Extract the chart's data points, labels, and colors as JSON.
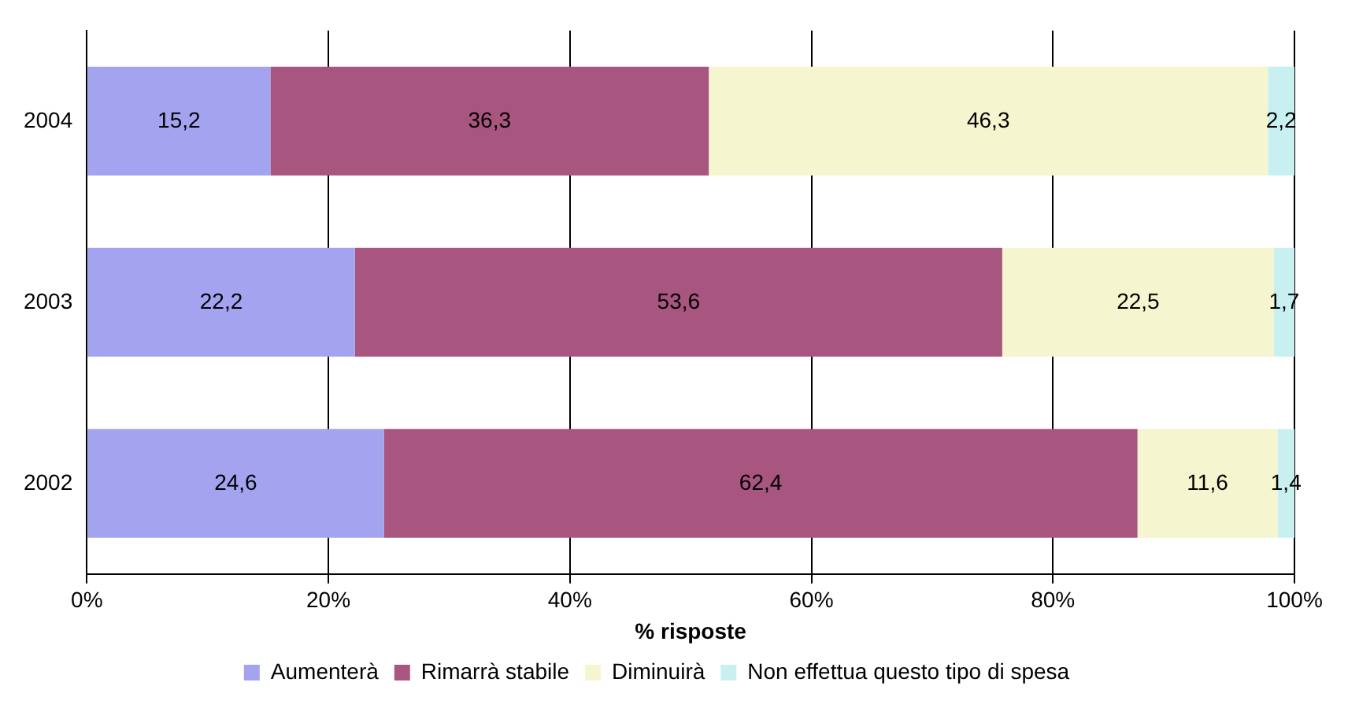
{
  "chart_data": {
    "type": "bar",
    "orientation": "horizontal",
    "stacked": true,
    "categories": [
      "2004",
      "2003",
      "2002"
    ],
    "xlabel": "% risposte",
    "xlim": [
      0,
      100
    ],
    "xticks": [
      {
        "value": 0,
        "label": "0%"
      },
      {
        "value": 20,
        "label": "20%"
      },
      {
        "value": 40,
        "label": "40%"
      },
      {
        "value": 60,
        "label": "60%"
      },
      {
        "value": 80,
        "label": "80%"
      },
      {
        "value": 100,
        "label": "100%"
      }
    ],
    "grid": "x",
    "legend": "bottom",
    "series": [
      {
        "name": "Aumenterà",
        "color": "#a3a3f0",
        "values": [
          15.2,
          22.2,
          24.6
        ],
        "value_labels": [
          "15,2",
          "22,2",
          "24,6"
        ]
      },
      {
        "name": "Rimarrà stabile",
        "color": "#a8557f",
        "values": [
          36.3,
          53.6,
          62.4
        ],
        "value_labels": [
          "36,3",
          "53,6",
          "62,4"
        ]
      },
      {
        "name": "Diminuirà",
        "color": "#f5f5d0",
        "values": [
          46.3,
          22.5,
          11.6
        ],
        "value_labels": [
          "46,3",
          "22,5",
          "11,6"
        ]
      },
      {
        "name": "Non effettua questo tipo di spesa",
        "color": "#c8f0f0",
        "values": [
          2.2,
          1.7,
          1.4
        ],
        "value_labels": [
          "2,2",
          "1,7",
          "1,4"
        ]
      }
    ]
  }
}
